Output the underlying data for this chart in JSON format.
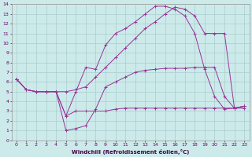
{
  "xlabel": "Windchill (Refroidissement éolien,°C)",
  "bg_color": "#cceaea",
  "grid_color": "#aacccc",
  "line_color": "#993399",
  "xlim": [
    -0.5,
    23.5
  ],
  "ylim": [
    0,
    14
  ],
  "xticks": [
    0,
    1,
    2,
    3,
    4,
    5,
    6,
    7,
    8,
    9,
    10,
    11,
    12,
    13,
    14,
    15,
    16,
    17,
    18,
    19,
    20,
    21,
    22,
    23
  ],
  "yticks": [
    0,
    1,
    2,
    3,
    4,
    5,
    6,
    7,
    8,
    9,
    10,
    11,
    12,
    13,
    14
  ],
  "series": [
    {
      "x": [
        0,
        1,
        2,
        3,
        4,
        5,
        6,
        7,
        8,
        9,
        10,
        11,
        12,
        13,
        14,
        15,
        16,
        17,
        18,
        19,
        20,
        21,
        22,
        23
      ],
      "y": [
        6.3,
        5.2,
        5.0,
        5.0,
        5.0,
        5.0,
        5.2,
        5.5,
        6.5,
        7.5,
        8.5,
        9.5,
        10.5,
        11.5,
        12.2,
        13.0,
        13.7,
        13.5,
        12.8,
        11.0,
        11.0,
        11.0,
        3.3,
        3.3
      ]
    },
    {
      "x": [
        0,
        1,
        2,
        3,
        4,
        5,
        6,
        7,
        8,
        9,
        10,
        11,
        12,
        13,
        14,
        15,
        16,
        17,
        18,
        19,
        20,
        21,
        22,
        23
      ],
      "y": [
        6.3,
        5.2,
        5.0,
        5.0,
        5.0,
        2.5,
        5.0,
        7.5,
        7.3,
        9.8,
        11.0,
        11.5,
        12.2,
        13.0,
        13.8,
        13.8,
        13.5,
        12.8,
        11.0,
        7.3,
        4.5,
        3.2,
        3.3,
        3.5
      ]
    },
    {
      "x": [
        0,
        1,
        2,
        3,
        4,
        5,
        6,
        7,
        8,
        9,
        10,
        11,
        12,
        13,
        14,
        15,
        16,
        17,
        18,
        19,
        20,
        21,
        22,
        23
      ],
      "y": [
        6.3,
        5.2,
        5.0,
        5.0,
        5.0,
        1.0,
        1.2,
        1.5,
        3.2,
        5.5,
        6.0,
        6.5,
        7.0,
        7.2,
        7.3,
        7.4,
        7.4,
        7.4,
        7.5,
        7.5,
        7.5,
        4.5,
        3.3,
        3.5
      ]
    },
    {
      "x": [
        0,
        1,
        2,
        3,
        4,
        5,
        6,
        7,
        8,
        9,
        10,
        11,
        12,
        13,
        14,
        15,
        16,
        17,
        18,
        19,
        20,
        21,
        22,
        23
      ],
      "y": [
        6.3,
        5.2,
        5.0,
        5.0,
        5.0,
        2.5,
        3.0,
        3.0,
        3.0,
        3.0,
        3.2,
        3.3,
        3.3,
        3.3,
        3.3,
        3.3,
        3.3,
        3.3,
        3.3,
        3.3,
        3.3,
        3.3,
        3.3,
        3.5
      ]
    }
  ]
}
